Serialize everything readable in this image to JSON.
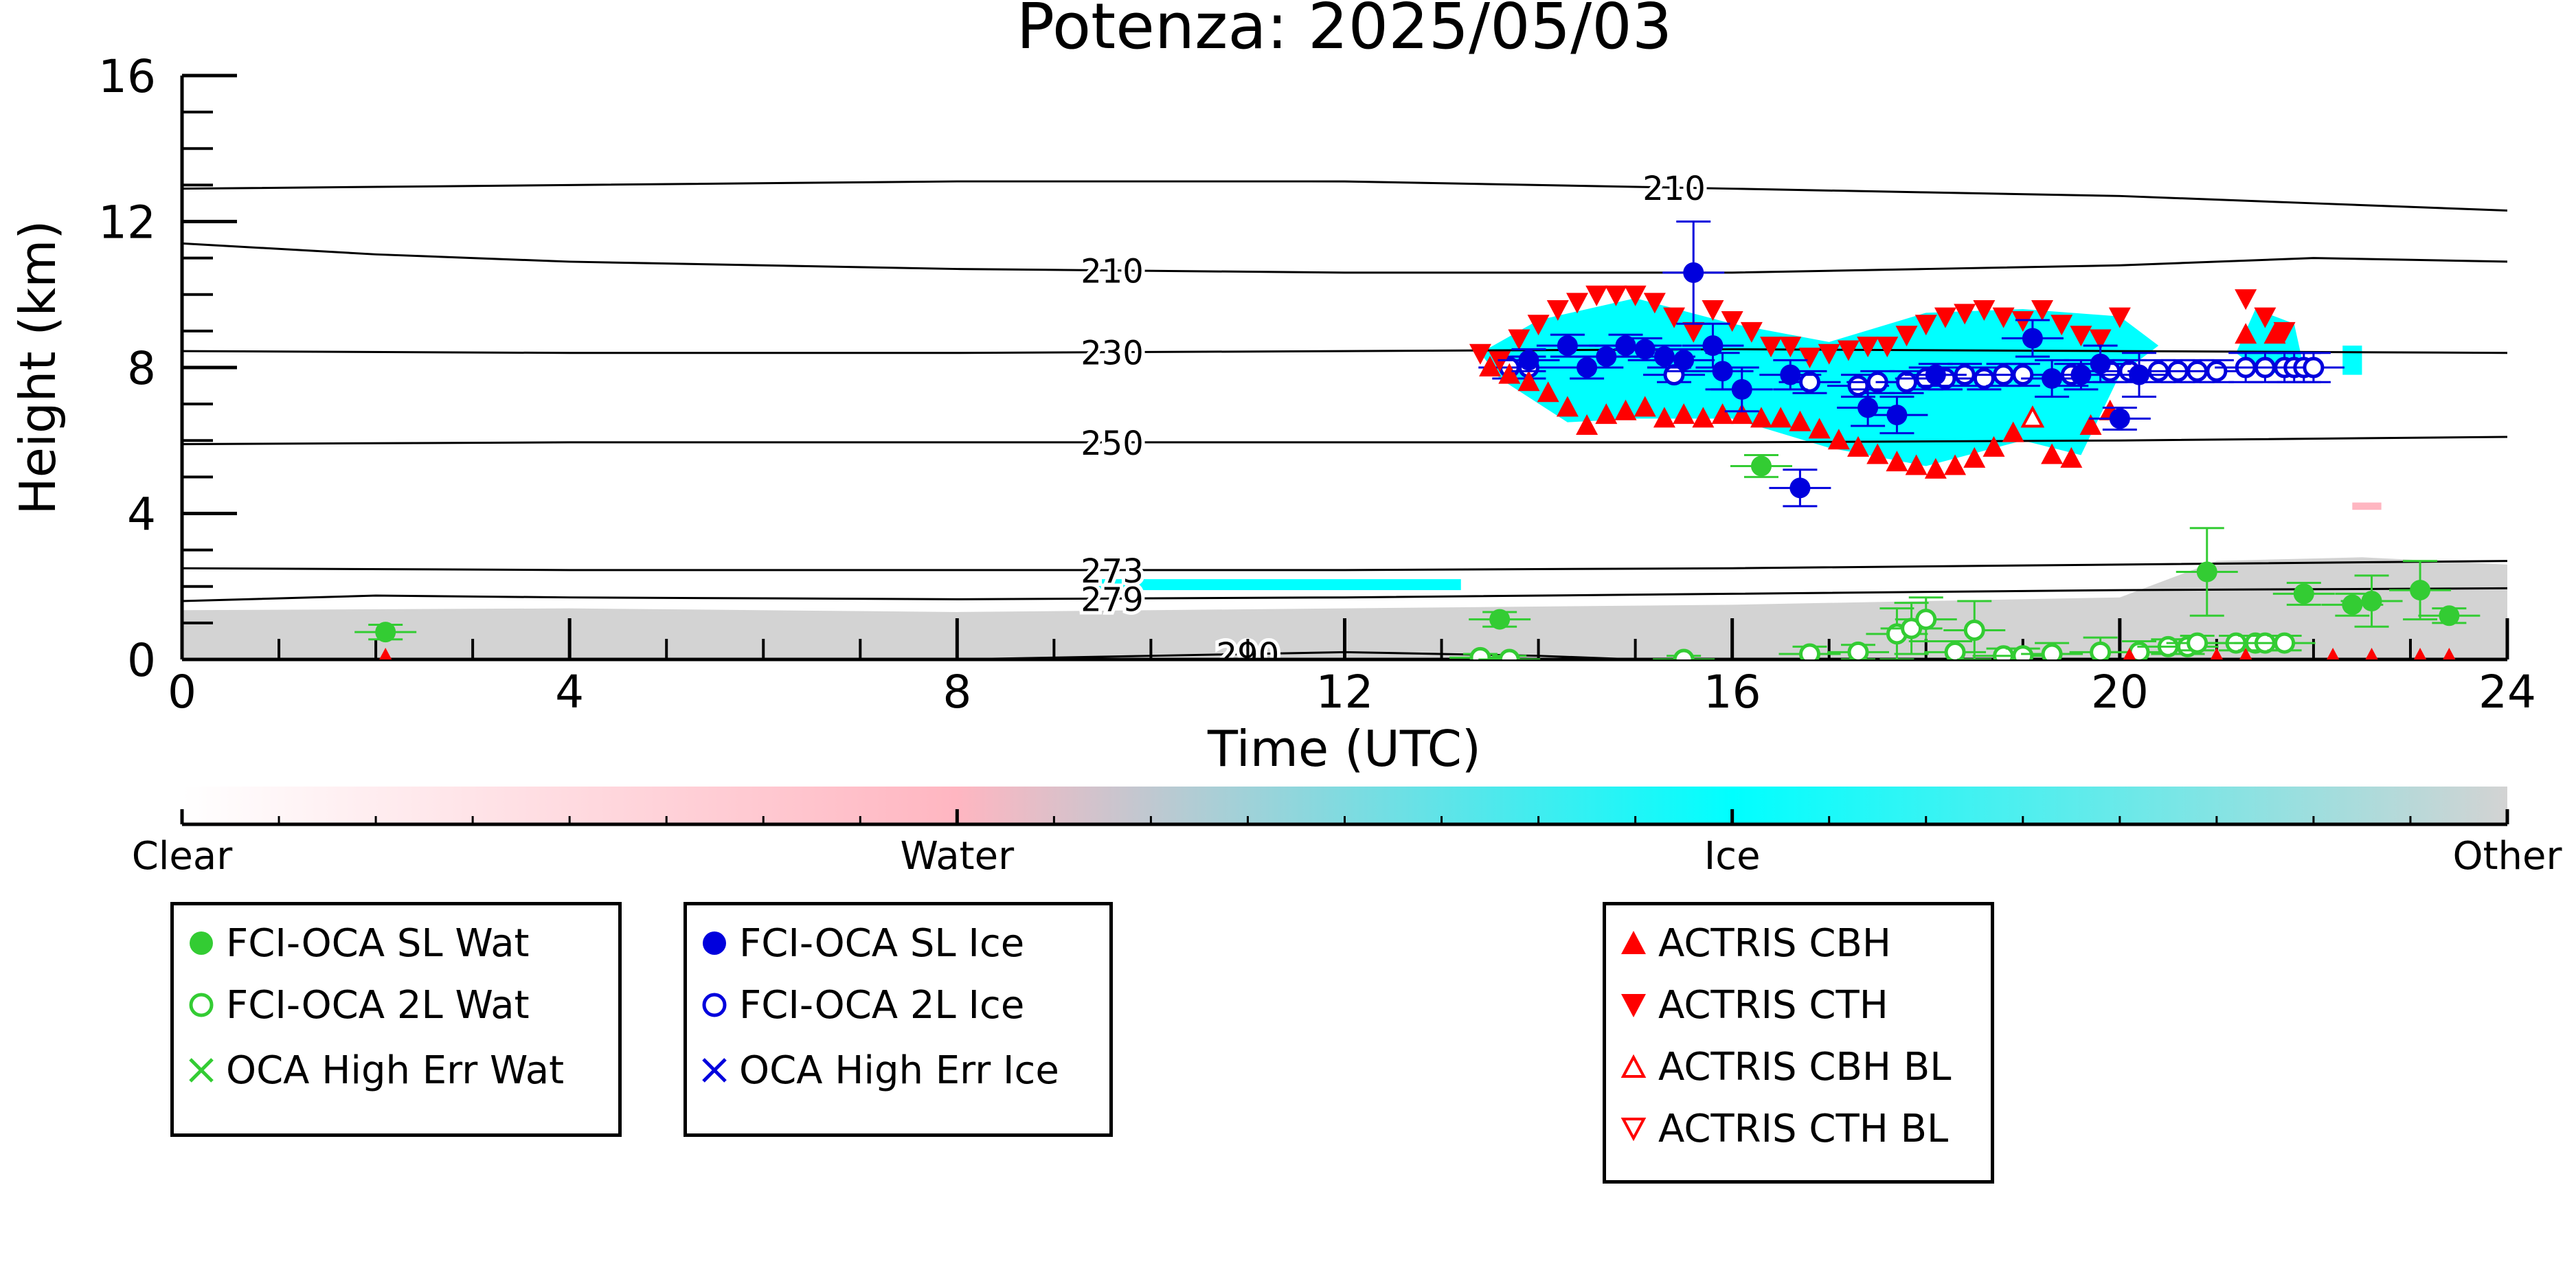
{
  "chart_data": {
    "type": "scatter",
    "title": "Potenza: 2025/05/03",
    "xlabel": "Time (UTC)",
    "ylabel": "Height (km)",
    "xlim": [
      0,
      24
    ],
    "ylim": [
      0,
      16
    ],
    "xticks": [
      0,
      4,
      8,
      12,
      16,
      20,
      24
    ],
    "yticks": [
      0,
      4,
      8,
      12,
      16
    ],
    "contours": [
      {
        "label": "210",
        "label_x": 15.4,
        "points": [
          [
            0,
            12.9
          ],
          [
            4,
            13.0
          ],
          [
            8,
            13.1
          ],
          [
            12,
            13.1
          ],
          [
            14,
            13.0
          ],
          [
            16,
            12.9
          ],
          [
            18,
            12.8
          ],
          [
            20,
            12.7
          ],
          [
            22,
            12.5
          ],
          [
            24,
            12.3
          ]
        ]
      },
      {
        "label": "210",
        "label_x": 9.6,
        "points": [
          [
            0,
            11.4
          ],
          [
            2,
            11.1
          ],
          [
            4,
            10.9
          ],
          [
            6,
            10.8
          ],
          [
            8,
            10.7
          ],
          [
            10,
            10.65
          ],
          [
            12,
            10.6
          ],
          [
            14,
            10.6
          ],
          [
            16,
            10.6
          ],
          [
            18,
            10.7
          ],
          [
            20,
            10.8
          ],
          [
            22,
            11.0
          ],
          [
            24,
            10.9
          ]
        ]
      },
      {
        "label": "230",
        "label_x": 9.6,
        "points": [
          [
            0,
            8.45
          ],
          [
            4,
            8.4
          ],
          [
            8,
            8.4
          ],
          [
            12,
            8.45
          ],
          [
            16,
            8.5
          ],
          [
            20,
            8.45
          ],
          [
            24,
            8.4
          ]
        ]
      },
      {
        "label": "250",
        "label_x": 9.6,
        "points": [
          [
            0,
            5.9
          ],
          [
            4,
            5.95
          ],
          [
            8,
            5.95
          ],
          [
            12,
            5.95
          ],
          [
            16,
            5.95
          ],
          [
            20,
            6.0
          ],
          [
            24,
            6.1
          ]
        ]
      },
      {
        "label": "273",
        "label_x": 9.6,
        "points": [
          [
            0,
            2.5
          ],
          [
            4,
            2.45
          ],
          [
            8,
            2.45
          ],
          [
            12,
            2.45
          ],
          [
            16,
            2.5
          ],
          [
            20,
            2.6
          ],
          [
            24,
            2.7
          ]
        ]
      },
      {
        "label": "279",
        "label_x": 9.6,
        "points": [
          [
            0,
            1.6
          ],
          [
            2,
            1.75
          ],
          [
            4,
            1.7
          ],
          [
            8,
            1.65
          ],
          [
            12,
            1.7
          ],
          [
            16,
            1.8
          ],
          [
            20,
            1.9
          ],
          [
            24,
            1.95
          ]
        ]
      },
      {
        "label": "290",
        "label_x": 11.0,
        "points": [
          [
            0,
            0.0
          ],
          [
            8,
            0.0
          ],
          [
            10,
            0.1
          ],
          [
            12,
            0.2
          ],
          [
            14,
            0.1
          ],
          [
            15,
            0.0
          ]
        ]
      }
    ],
    "series": [
      {
        "name": "FCI-OCA SL Wat",
        "marker": "filled-circle",
        "color": "#33cc33",
        "points": [
          [
            2.1,
            0.75
          ],
          [
            13.6,
            1.1
          ],
          [
            16.3,
            5.3
          ],
          [
            20.9,
            2.4
          ],
          [
            21.9,
            1.8
          ],
          [
            22.4,
            1.5
          ],
          [
            22.6,
            1.6
          ],
          [
            23.1,
            1.9
          ],
          [
            23.4,
            1.2
          ]
        ],
        "errors": [
          0.2,
          0.2,
          0.3,
          1.2,
          0.3,
          0.3,
          0.7,
          0.8,
          0.2
        ]
      },
      {
        "name": "FCI-OCA 2L Wat",
        "marker": "open-circle",
        "color": "#33cc33",
        "points": [
          [
            13.4,
            0.05
          ],
          [
            13.7,
            0.0
          ],
          [
            15.5,
            0.0
          ],
          [
            16.8,
            0.15
          ],
          [
            17.3,
            0.2
          ],
          [
            17.7,
            0.7
          ],
          [
            17.85,
            0.85
          ],
          [
            18.0,
            1.1
          ],
          [
            18.3,
            0.2
          ],
          [
            18.5,
            0.8
          ],
          [
            18.8,
            0.1
          ],
          [
            19.0,
            0.1
          ],
          [
            19.3,
            0.15
          ],
          [
            19.8,
            0.2
          ],
          [
            20.2,
            0.2
          ],
          [
            20.5,
            0.35
          ],
          [
            20.7,
            0.35
          ],
          [
            20.8,
            0.45
          ],
          [
            21.2,
            0.45
          ],
          [
            21.4,
            0.45
          ],
          [
            21.5,
            0.45
          ],
          [
            21.7,
            0.45
          ]
        ],
        "errors": [
          0.1,
          0.1,
          0.1,
          0.2,
          0.2,
          0.7,
          0.7,
          0.6,
          0.3,
          0.8,
          0.2,
          0.2,
          0.3,
          0.4,
          0.3,
          0.2,
          0.2,
          0.2,
          0.2,
          0.2,
          0.2,
          0.2
        ]
      },
      {
        "name": "OCA High Err Wat",
        "marker": "x",
        "color": "#33cc33",
        "points": []
      },
      {
        "name": "FCI-OCA SL Ice",
        "marker": "filled-circle",
        "color": "#0000dd",
        "points": [
          [
            13.9,
            8.2
          ],
          [
            14.3,
            8.6
          ],
          [
            14.5,
            8.0
          ],
          [
            14.7,
            8.3
          ],
          [
            14.9,
            8.6
          ],
          [
            15.1,
            8.5
          ],
          [
            15.3,
            8.3
          ],
          [
            15.5,
            8.2
          ],
          [
            15.6,
            10.6
          ],
          [
            15.8,
            8.6
          ],
          [
            15.9,
            7.9
          ],
          [
            16.1,
            7.4
          ],
          [
            16.6,
            7.8
          ],
          [
            16.7,
            4.7
          ],
          [
            17.4,
            6.9
          ],
          [
            17.7,
            6.7
          ],
          [
            18.1,
            7.8
          ],
          [
            19.1,
            8.8
          ],
          [
            19.3,
            7.7
          ],
          [
            19.6,
            7.8
          ],
          [
            19.8,
            8.1
          ],
          [
            20.0,
            6.6
          ],
          [
            20.2,
            7.8
          ]
        ],
        "errors": [
          0.3,
          0.3,
          0.3,
          0.3,
          0.3,
          0.3,
          0.3,
          0.3,
          1.4,
          0.6,
          0.5,
          0.6,
          0.4,
          0.5,
          0.5,
          0.5,
          0.3,
          0.5,
          0.5,
          0.4,
          0.5,
          0.3,
          0.6
        ]
      },
      {
        "name": "FCI-OCA 2L Ice",
        "marker": "open-circle",
        "color": "#0000dd",
        "points": [
          [
            13.7,
            8.0
          ],
          [
            13.9,
            8.0
          ],
          [
            15.4,
            7.8
          ],
          [
            16.8,
            7.6
          ],
          [
            17.3,
            7.5
          ],
          [
            17.5,
            7.6
          ],
          [
            17.8,
            7.6
          ],
          [
            18.0,
            7.7
          ],
          [
            18.2,
            7.7
          ],
          [
            18.4,
            7.8
          ],
          [
            18.6,
            7.7
          ],
          [
            18.8,
            7.8
          ],
          [
            19.0,
            7.8
          ],
          [
            19.5,
            7.8
          ],
          [
            19.9,
            7.9
          ],
          [
            20.1,
            7.9
          ],
          [
            20.4,
            7.9
          ],
          [
            20.6,
            7.9
          ],
          [
            20.8,
            7.9
          ],
          [
            21.0,
            7.9
          ],
          [
            21.3,
            8.0
          ],
          [
            21.5,
            8.0
          ],
          [
            21.7,
            8.0
          ],
          [
            21.8,
            8.0
          ],
          [
            21.9,
            8.0
          ],
          [
            22.0,
            8.0
          ]
        ],
        "errors": [
          0.3,
          0.3,
          0.2,
          0.3,
          0.3,
          0.3,
          0.3,
          0.3,
          0.3,
          0.3,
          0.3,
          0.3,
          0.3,
          0.3,
          0.3,
          0.3,
          0.3,
          0.3,
          0.3,
          0.3,
          0.4,
          0.4,
          0.4,
          0.4,
          0.4,
          0.4
        ]
      },
      {
        "name": "OCA High Err Ice",
        "marker": "x",
        "color": "#0000dd",
        "points": []
      },
      {
        "name": "ACTRIS CBH",
        "marker": "triangle-up",
        "color": "#ff0000",
        "points": [
          [
            2.1,
            0.0
          ],
          [
            13.5,
            8.0
          ],
          [
            13.7,
            7.8
          ],
          [
            13.9,
            7.6
          ],
          [
            14.1,
            7.3
          ],
          [
            14.3,
            6.9
          ],
          [
            14.5,
            6.4
          ],
          [
            14.7,
            6.7
          ],
          [
            14.9,
            6.8
          ],
          [
            15.1,
            6.9
          ],
          [
            15.3,
            6.6
          ],
          [
            15.5,
            6.7
          ],
          [
            15.7,
            6.6
          ],
          [
            15.9,
            6.7
          ],
          [
            16.1,
            6.7
          ],
          [
            16.3,
            6.6
          ],
          [
            16.5,
            6.6
          ],
          [
            16.7,
            6.5
          ],
          [
            16.9,
            6.3
          ],
          [
            17.1,
            6.0
          ],
          [
            17.3,
            5.8
          ],
          [
            17.5,
            5.6
          ],
          [
            17.7,
            5.4
          ],
          [
            17.9,
            5.3
          ],
          [
            18.1,
            5.2
          ],
          [
            18.3,
            5.3
          ],
          [
            18.5,
            5.5
          ],
          [
            18.7,
            5.8
          ],
          [
            18.9,
            6.2
          ],
          [
            19.1,
            6.6
          ],
          [
            19.3,
            5.6
          ],
          [
            19.5,
            5.5
          ],
          [
            19.7,
            6.4
          ],
          [
            19.9,
            6.8
          ],
          [
            21.3,
            8.9
          ],
          [
            21.6,
            8.9
          ],
          [
            20.1,
            0.0
          ],
          [
            21.0,
            0.0
          ],
          [
            21.3,
            0.0
          ],
          [
            22.2,
            0.0
          ],
          [
            22.6,
            0.0
          ],
          [
            23.1,
            0.0
          ],
          [
            23.4,
            0.0
          ]
        ]
      },
      {
        "name": "ACTRIS CTH",
        "marker": "triangle-down",
        "color": "#ff0000",
        "points": [
          [
            13.4,
            8.4
          ],
          [
            13.6,
            8.2
          ],
          [
            13.8,
            8.8
          ],
          [
            14.0,
            9.2
          ],
          [
            14.2,
            9.6
          ],
          [
            14.4,
            9.8
          ],
          [
            14.6,
            10.0
          ],
          [
            14.8,
            10.0
          ],
          [
            15.0,
            10.0
          ],
          [
            15.2,
            9.8
          ],
          [
            15.4,
            9.4
          ],
          [
            15.6,
            9.0
          ],
          [
            15.8,
            9.6
          ],
          [
            16.0,
            9.3
          ],
          [
            16.2,
            9.0
          ],
          [
            16.4,
            8.6
          ],
          [
            16.6,
            8.6
          ],
          [
            16.8,
            8.3
          ],
          [
            17.0,
            8.4
          ],
          [
            17.2,
            8.5
          ],
          [
            17.4,
            8.6
          ],
          [
            17.6,
            8.6
          ],
          [
            17.8,
            8.9
          ],
          [
            18.0,
            9.2
          ],
          [
            18.2,
            9.4
          ],
          [
            18.4,
            9.5
          ],
          [
            18.6,
            9.6
          ],
          [
            18.8,
            9.4
          ],
          [
            19.0,
            9.3
          ],
          [
            19.2,
            9.6
          ],
          [
            19.4,
            9.2
          ],
          [
            19.6,
            8.9
          ],
          [
            19.8,
            8.8
          ],
          [
            20.0,
            9.4
          ],
          [
            21.3,
            9.9
          ],
          [
            21.5,
            9.4
          ],
          [
            21.7,
            9.0
          ]
        ]
      },
      {
        "name": "ACTRIS CBH BL",
        "marker": "open-triangle-up",
        "color": "#ff0000",
        "points": [
          [
            19.1,
            6.6
          ]
        ]
      },
      {
        "name": "ACTRIS CTH BL",
        "marker": "open-triangle-down",
        "color": "#ff0000",
        "points": []
      }
    ],
    "colorbar": {
      "labels": [
        "Clear",
        "Water",
        "Ice",
        "Other"
      ],
      "colors": [
        "#ffffff",
        "#ffb6c1",
        "#00ffff",
        "#d3d3d3"
      ]
    },
    "legend_groups": [
      [
        "FCI-OCA SL Wat",
        "FCI-OCA 2L Wat",
        "OCA High Err Wat"
      ],
      [
        "FCI-OCA SL Ice",
        "FCI-OCA 2L Ice",
        "OCA High Err Ice"
      ],
      [
        "ACTRIS CBH",
        "ACTRIS CTH",
        "ACTRIS CBH BL",
        "ACTRIS CTH BL"
      ]
    ],
    "legend_placement": "below",
    "grid": false
  }
}
